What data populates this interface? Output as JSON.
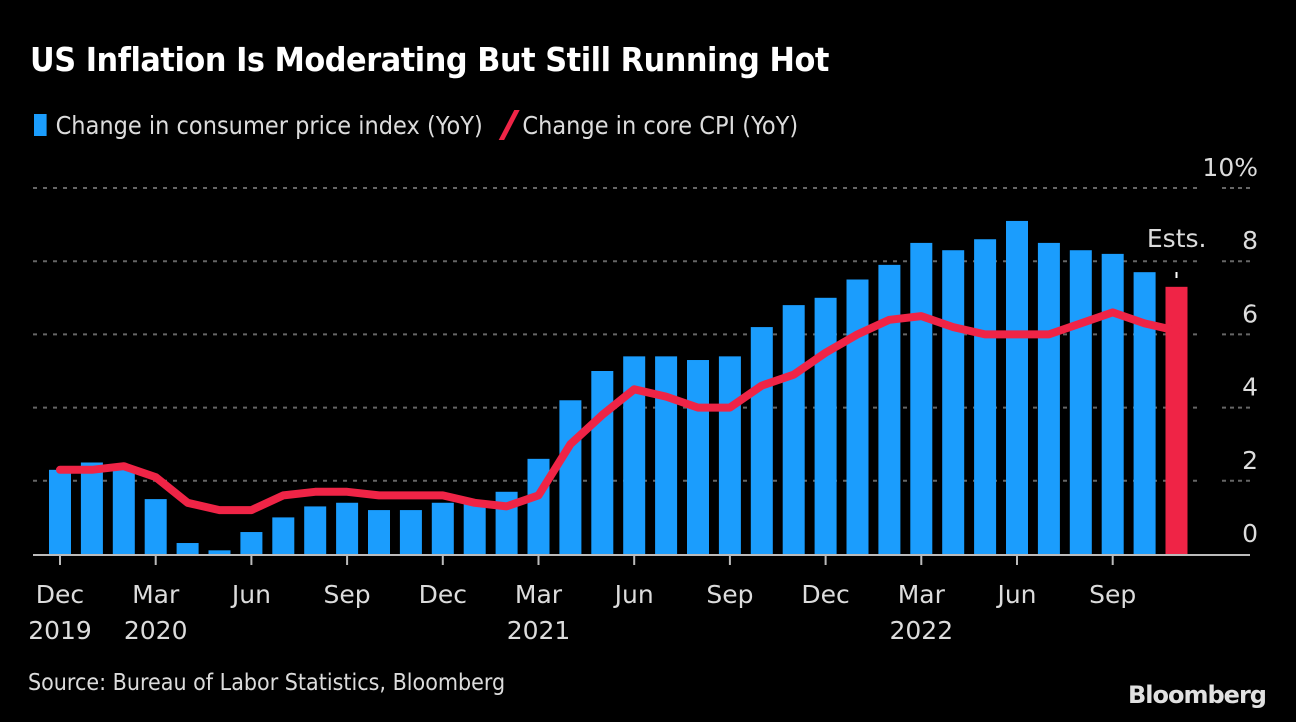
{
  "title": "US Inflation Is Moderating But Still Running Hot",
  "legend": {
    "cpi_label": "Change in consumer price index (YoY)",
    "core_label": "Change in core CPI (YoY)"
  },
  "source": "Source: Bureau of Labor Statistics, Bloomberg",
  "brand": "Bloomberg",
  "colors": {
    "cpi": "#1b9dfd",
    "core": "#ef2446",
    "estimate": "#ef2446",
    "grid": "#666666",
    "axis": "#bbbbbb"
  },
  "chart_data": {
    "type": "bar",
    "title": "US Inflation Is Moderating But Still Running Hot",
    "xlabel": "",
    "ylabel": "",
    "ylim": [
      0,
      10
    ],
    "y_ticks": [
      "0",
      "2",
      "4",
      "6",
      "8",
      "10%"
    ],
    "y_tick_values": [
      0,
      2,
      4,
      6,
      8,
      10
    ],
    "grid": true,
    "legend_position": "top-left",
    "annotation": "Ests.",
    "categories": [
      "Dec 2019",
      "Jan 2020",
      "Feb 2020",
      "Mar 2020",
      "Apr 2020",
      "May 2020",
      "Jun 2020",
      "Jul 2020",
      "Aug 2020",
      "Sep 2020",
      "Oct 2020",
      "Nov 2020",
      "Dec 2020",
      "Jan 2021",
      "Feb 2021",
      "Mar 2021",
      "Apr 2021",
      "May 2021",
      "Jun 2021",
      "Jul 2021",
      "Aug 2021",
      "Sep 2021",
      "Oct 2021",
      "Nov 2021",
      "Dec 2021",
      "Jan 2022",
      "Feb 2022",
      "Mar 2022",
      "Apr 2022",
      "May 2022",
      "Jun 2022",
      "Jul 2022",
      "Aug 2022",
      "Sep 2022",
      "Oct 2022",
      "Nov 2022"
    ],
    "x_tick_labels": [
      {
        "index": 0,
        "month": "Dec",
        "year": "2019"
      },
      {
        "index": 3,
        "month": "Mar",
        "year": "2020"
      },
      {
        "index": 6,
        "month": "Jun",
        "year": ""
      },
      {
        "index": 9,
        "month": "Sep",
        "year": ""
      },
      {
        "index": 12,
        "month": "Dec",
        "year": ""
      },
      {
        "index": 15,
        "month": "Mar",
        "year": "2021"
      },
      {
        "index": 18,
        "month": "Jun",
        "year": ""
      },
      {
        "index": 21,
        "month": "Sep",
        "year": ""
      },
      {
        "index": 24,
        "month": "Dec",
        "year": ""
      },
      {
        "index": 27,
        "month": "Mar",
        "year": "2022"
      },
      {
        "index": 30,
        "month": "Jun",
        "year": ""
      },
      {
        "index": 33,
        "month": "Sep",
        "year": ""
      }
    ],
    "series": [
      {
        "name": "Change in consumer price index (YoY)",
        "type": "bar",
        "values": [
          2.3,
          2.5,
          2.3,
          1.5,
          0.3,
          0.1,
          0.6,
          1.0,
          1.3,
          1.4,
          1.2,
          1.2,
          1.4,
          1.4,
          1.7,
          2.6,
          4.2,
          5.0,
          5.4,
          5.4,
          5.3,
          5.4,
          6.2,
          6.8,
          7.0,
          7.5,
          7.9,
          8.5,
          8.3,
          8.6,
          9.1,
          8.5,
          8.3,
          8.2,
          7.7,
          7.3
        ],
        "estimate_index": 35
      },
      {
        "name": "Change in core CPI (YoY)",
        "type": "line",
        "values": [
          2.3,
          2.3,
          2.4,
          2.1,
          1.4,
          1.2,
          1.2,
          1.6,
          1.7,
          1.7,
          1.6,
          1.6,
          1.6,
          1.4,
          1.3,
          1.6,
          3.0,
          3.8,
          4.5,
          4.3,
          4.0,
          4.0,
          4.6,
          4.9,
          5.5,
          6.0,
          6.4,
          6.5,
          6.2,
          6.0,
          6.0,
          6.0,
          6.3,
          6.6,
          6.3,
          6.1
        ]
      }
    ]
  }
}
